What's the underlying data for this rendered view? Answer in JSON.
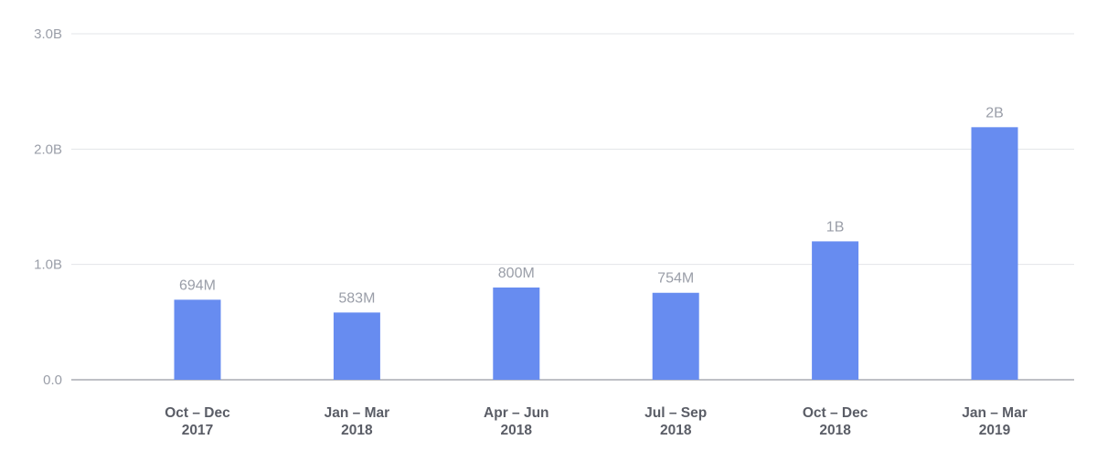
{
  "chart_data": {
    "type": "bar",
    "title": "",
    "xlabel": "",
    "ylabel": "",
    "categories": [
      [
        "Oct – Dec",
        "2017"
      ],
      [
        "Jan – Mar",
        "2018"
      ],
      [
        "Apr – Jun",
        "2018"
      ],
      [
        "Jul – Sep",
        "2018"
      ],
      [
        "Oct – Dec",
        "2018"
      ],
      [
        "Jan – Mar",
        "2019"
      ]
    ],
    "values": [
      694000000,
      583000000,
      800000000,
      754000000,
      1200000000,
      2190000000
    ],
    "data_labels": [
      "694M",
      "583M",
      "800M",
      "754M",
      "1B",
      "2B"
    ],
    "ylim": [
      0,
      3000000000
    ],
    "yticks": [
      0,
      1000000000,
      2000000000,
      3000000000
    ],
    "ytick_labels": [
      "0.0",
      "1.0B",
      "2.0B",
      "3.0B"
    ],
    "grid": true,
    "legend": "none",
    "bar_color": "#678cf0",
    "grid_color": "#e3e4e8",
    "axis_color": "#a9acb4"
  }
}
